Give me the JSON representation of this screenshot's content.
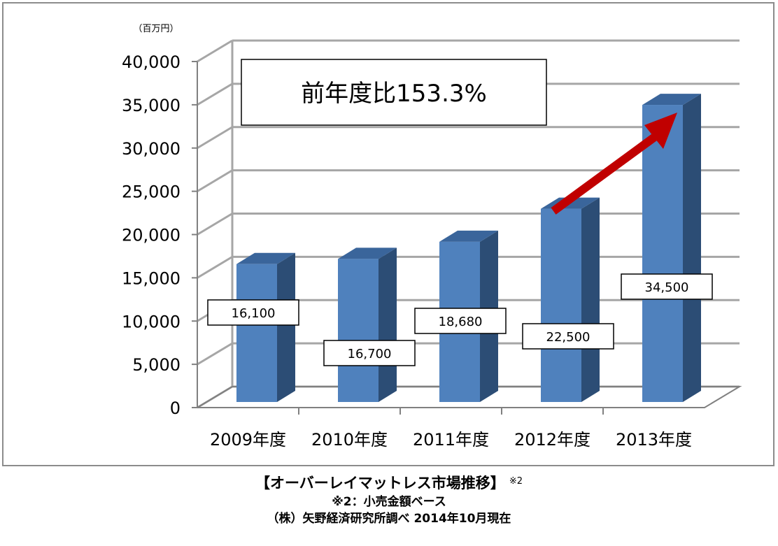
{
  "chart_data": {
    "type": "bar",
    "style": "3d-column",
    "unit_label": "（百万円）",
    "categories": [
      "2009年度",
      "2010年度",
      "2011年度",
      "2012年度",
      "2013年度"
    ],
    "values": [
      16100,
      16700,
      18680,
      22500,
      34500
    ],
    "data_labels": [
      "16,100",
      "16,700",
      "18,680",
      "22,500",
      "34,500"
    ],
    "yticks": [
      "0",
      "5,000",
      "10,000",
      "15,000",
      "20,000",
      "25,000",
      "30,000",
      "35,000",
      "40,000"
    ],
    "ylim": [
      0,
      40000
    ],
    "grid": true,
    "annotation": "前年度比153.3%",
    "bar_color": "#4f81bd",
    "arrow_color": "#c00000"
  },
  "caption": {
    "title": "【オーバーレイマットレス市場推移】",
    "title_note_mark": "※2",
    "note": "※2：小売金額ベース",
    "source": "（株）矢野経済研究所調べ 2014年10月現在"
  }
}
